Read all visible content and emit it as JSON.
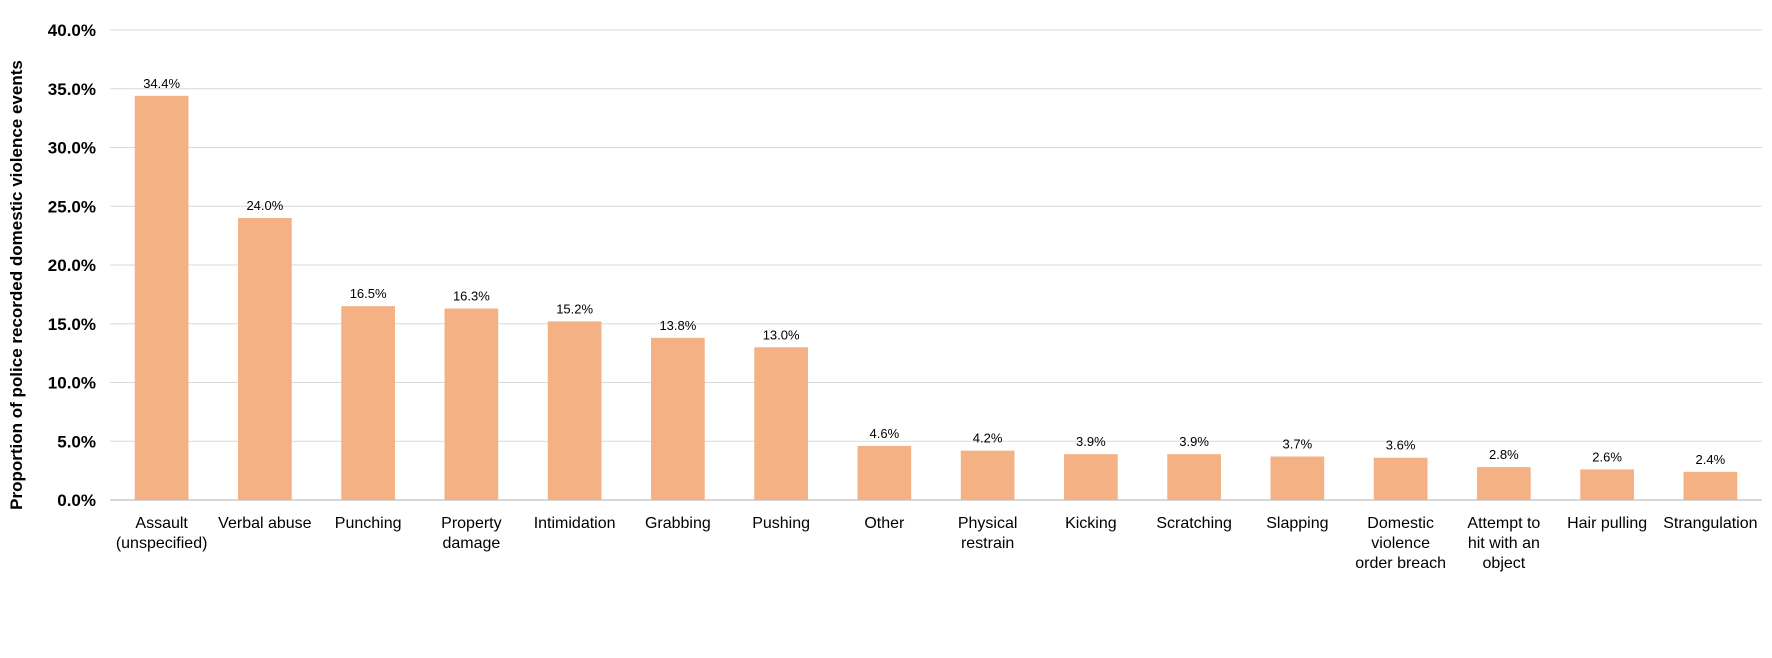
{
  "chart_data": {
    "type": "bar",
    "title": "",
    "xlabel": "",
    "ylabel": "Proportion of police recorded domestic violence events",
    "ylim": [
      0,
      40
    ],
    "y_tick_step": 5,
    "y_tick_format": "percent_1dp",
    "grid": true,
    "legend": "none",
    "bar_color": "#F4B183",
    "categories": [
      "Assault (unspecified)",
      "Verbal abuse",
      "Punching",
      "Property damage",
      "Intimidation",
      "Grabbing",
      "Pushing",
      "Other",
      "Physical restrain",
      "Kicking",
      "Scratching",
      "Slapping",
      "Domestic violence order breach",
      "Attempt to hit with an object",
      "Hair pulling",
      "Strangulation"
    ],
    "category_label_lines": [
      [
        "Assault",
        "(unspecified)"
      ],
      [
        "Verbal abuse"
      ],
      [
        "Punching"
      ],
      [
        "Property",
        "damage"
      ],
      [
        "Intimidation"
      ],
      [
        "Grabbing"
      ],
      [
        "Pushing"
      ],
      [
        "Other"
      ],
      [
        "Physical",
        "restrain"
      ],
      [
        "Kicking"
      ],
      [
        "Scratching"
      ],
      [
        "Slapping"
      ],
      [
        "Domestic",
        "violence",
        "order breach"
      ],
      [
        "Attempt to",
        "hit with an",
        "object"
      ],
      [
        "Hair pulling"
      ],
      [
        "Strangulation"
      ]
    ],
    "values": [
      34.4,
      24.0,
      16.5,
      16.3,
      15.2,
      13.8,
      13.0,
      4.6,
      4.2,
      3.9,
      3.9,
      3.7,
      3.6,
      2.8,
      2.6,
      2.4
    ],
    "data_labels": [
      "34.4%",
      "24.0%",
      "16.5%",
      "16.3%",
      "15.2%",
      "13.8%",
      "13.0%",
      "4.6%",
      "4.2%",
      "3.9%",
      "3.9%",
      "3.7%",
      "3.6%",
      "2.8%",
      "2.6%",
      "2.4%"
    ]
  }
}
